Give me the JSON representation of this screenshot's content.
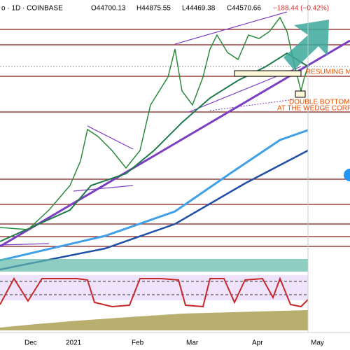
{
  "header": {
    "symbol": "o · 1D · COINBASE",
    "open": "O44700.13",
    "high": "H44875.55",
    "low": "L44469.38",
    "close": "C44570.66",
    "change": "−188.44 (−0.42%)"
  },
  "annotations": [
    "RESUMING MA",
    "DOUBLE BOTTOM",
    "AT THE WEDGE CORRECT"
  ],
  "x_axis": [
    "Dec",
    "2021",
    "Feb",
    "Mar",
    "Apr",
    "May"
  ]
}
